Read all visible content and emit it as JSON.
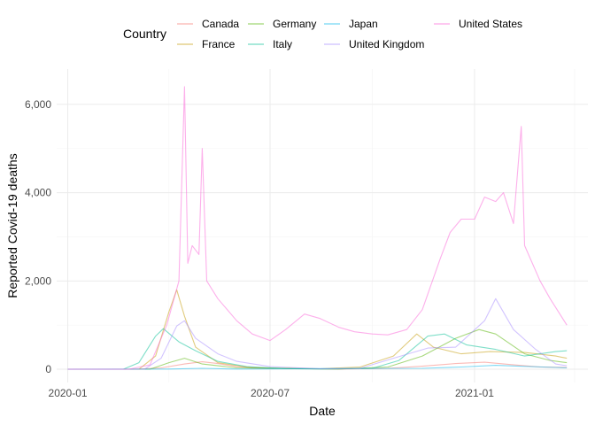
{
  "chart_data": {
    "type": "line",
    "xlabel": "Date",
    "ylabel": "Reported Covid-19 deaths",
    "x_type": "date",
    "xlim": [
      "2019-12-22",
      "2021-04-13"
    ],
    "ylim": [
      -300,
      6800
    ],
    "x_ticks": [
      {
        "value": "2020-01-01",
        "label": "2020-01"
      },
      {
        "value": "2020-07-01",
        "label": "2020-07"
      },
      {
        "value": "2021-01-01",
        "label": "2021-01"
      }
    ],
    "x_minor_ticks": [
      "2020-04-01",
      "2020-10-01",
      "2021-04-01"
    ],
    "y_ticks": [
      {
        "value": 0,
        "label": "0"
      },
      {
        "value": 2000,
        "label": "2,000"
      },
      {
        "value": 4000,
        "label": "4,000"
      },
      {
        "value": 6000,
        "label": "6,000"
      }
    ],
    "y_minor_ticks": [
      1000,
      3000,
      5000
    ],
    "grid": true,
    "legend": {
      "title": "Country",
      "placement": "top"
    },
    "series": [
      {
        "name": "Canada",
        "color": "#F8766D",
        "points": [
          [
            "2020-01-01",
            0
          ],
          [
            "2020-03-01",
            0
          ],
          [
            "2020-03-25",
            30
          ],
          [
            "2020-04-15",
            120
          ],
          [
            "2020-05-01",
            170
          ],
          [
            "2020-05-15",
            130
          ],
          [
            "2020-06-01",
            60
          ],
          [
            "2020-07-01",
            20
          ],
          [
            "2020-09-01",
            5
          ],
          [
            "2020-10-15",
            20
          ],
          [
            "2020-11-15",
            70
          ],
          [
            "2020-12-15",
            130
          ],
          [
            "2021-01-10",
            160
          ],
          [
            "2021-02-01",
            110
          ],
          [
            "2021-03-01",
            50
          ],
          [
            "2021-03-25",
            40
          ]
        ]
      },
      {
        "name": "France",
        "color": "#C49A00",
        "points": [
          [
            "2020-01-01",
            0
          ],
          [
            "2020-03-05",
            0
          ],
          [
            "2020-03-20",
            300
          ],
          [
            "2020-04-01",
            1300
          ],
          [
            "2020-04-08",
            1800
          ],
          [
            "2020-04-15",
            1200
          ],
          [
            "2020-04-25",
            500
          ],
          [
            "2020-05-15",
            150
          ],
          [
            "2020-06-15",
            30
          ],
          [
            "2020-08-15",
            10
          ],
          [
            "2020-09-20",
            50
          ],
          [
            "2020-10-20",
            300
          ],
          [
            "2020-11-10",
            800
          ],
          [
            "2020-11-25",
            500
          ],
          [
            "2020-12-20",
            350
          ],
          [
            "2021-01-15",
            400
          ],
          [
            "2021-02-15",
            380
          ],
          [
            "2021-03-15",
            300
          ],
          [
            "2021-03-25",
            250
          ]
        ]
      },
      {
        "name": "Germany",
        "color": "#53B400",
        "points": [
          [
            "2020-01-01",
            0
          ],
          [
            "2020-03-15",
            0
          ],
          [
            "2020-04-01",
            150
          ],
          [
            "2020-04-15",
            250
          ],
          [
            "2020-05-01",
            120
          ],
          [
            "2020-06-01",
            30
          ],
          [
            "2020-09-01",
            5
          ],
          [
            "2020-10-15",
            50
          ],
          [
            "2020-11-15",
            300
          ],
          [
            "2020-12-15",
            700
          ],
          [
            "2021-01-05",
            900
          ],
          [
            "2021-01-20",
            800
          ],
          [
            "2021-02-15",
            350
          ],
          [
            "2021-03-10",
            200
          ],
          [
            "2021-03-25",
            150
          ]
        ]
      },
      {
        "name": "Italy",
        "color": "#00C094",
        "points": [
          [
            "2020-01-01",
            0
          ],
          [
            "2020-02-20",
            0
          ],
          [
            "2020-03-05",
            150
          ],
          [
            "2020-03-20",
            750
          ],
          [
            "2020-03-27",
            920
          ],
          [
            "2020-04-10",
            620
          ],
          [
            "2020-04-25",
            420
          ],
          [
            "2020-05-15",
            180
          ],
          [
            "2020-06-10",
            60
          ],
          [
            "2020-07-15",
            15
          ],
          [
            "2020-08-15",
            5
          ],
          [
            "2020-10-01",
            20
          ],
          [
            "2020-10-25",
            200
          ],
          [
            "2020-11-20",
            750
          ],
          [
            "2020-12-05",
            800
          ],
          [
            "2020-12-25",
            550
          ],
          [
            "2021-01-20",
            450
          ],
          [
            "2021-02-15",
            300
          ],
          [
            "2021-03-15",
            400
          ],
          [
            "2021-03-25",
            420
          ]
        ]
      },
      {
        "name": "Japan",
        "color": "#00B6EB",
        "points": [
          [
            "2020-01-01",
            0
          ],
          [
            "2020-04-01",
            5
          ],
          [
            "2020-05-01",
            20
          ],
          [
            "2020-06-01",
            5
          ],
          [
            "2020-08-15",
            15
          ],
          [
            "2020-11-15",
            20
          ],
          [
            "2020-12-20",
            50
          ],
          [
            "2021-01-20",
            90
          ],
          [
            "2021-02-10",
            70
          ],
          [
            "2021-03-15",
            40
          ],
          [
            "2021-03-25",
            30
          ]
        ]
      },
      {
        "name": "United Kingdom",
        "color": "#A58AFF",
        "points": [
          [
            "2020-01-01",
            0
          ],
          [
            "2020-03-10",
            0
          ],
          [
            "2020-03-25",
            250
          ],
          [
            "2020-04-08",
            980
          ],
          [
            "2020-04-15",
            1100
          ],
          [
            "2020-04-25",
            700
          ],
          [
            "2020-05-15",
            350
          ],
          [
            "2020-06-01",
            180
          ],
          [
            "2020-07-01",
            60
          ],
          [
            "2020-08-15",
            10
          ],
          [
            "2020-09-20",
            20
          ],
          [
            "2020-10-20",
            250
          ],
          [
            "2020-11-20",
            480
          ],
          [
            "2020-12-15",
            500
          ],
          [
            "2021-01-10",
            1100
          ],
          [
            "2021-01-20",
            1600
          ],
          [
            "2021-02-05",
            900
          ],
          [
            "2021-02-25",
            450
          ],
          [
            "2021-03-15",
            120
          ],
          [
            "2021-03-25",
            80
          ]
        ]
      },
      {
        "name": "United States",
        "color": "#FB61D7",
        "points": [
          [
            "2020-01-01",
            0
          ],
          [
            "2020-02-25",
            0
          ],
          [
            "2020-03-15",
            100
          ],
          [
            "2020-03-30",
            1000
          ],
          [
            "2020-04-10",
            2000
          ],
          [
            "2020-04-15",
            6400
          ],
          [
            "2020-04-18",
            2400
          ],
          [
            "2020-04-22",
            2800
          ],
          [
            "2020-04-28",
            2600
          ],
          [
            "2020-05-01",
            5000
          ],
          [
            "2020-05-05",
            2000
          ],
          [
            "2020-05-15",
            1600
          ],
          [
            "2020-06-01",
            1100
          ],
          [
            "2020-06-15",
            800
          ],
          [
            "2020-07-01",
            650
          ],
          [
            "2020-07-15",
            900
          ],
          [
            "2020-08-01",
            1250
          ],
          [
            "2020-08-15",
            1150
          ],
          [
            "2020-09-01",
            950
          ],
          [
            "2020-09-15",
            850
          ],
          [
            "2020-10-01",
            800
          ],
          [
            "2020-10-15",
            780
          ],
          [
            "2020-11-01",
            900
          ],
          [
            "2020-11-15",
            1350
          ],
          [
            "2020-12-01",
            2500
          ],
          [
            "2020-12-10",
            3100
          ],
          [
            "2020-12-20",
            3400
          ],
          [
            "2021-01-01",
            3400
          ],
          [
            "2021-01-10",
            3900
          ],
          [
            "2021-01-20",
            3800
          ],
          [
            "2021-01-27",
            4000
          ],
          [
            "2021-02-05",
            3300
          ],
          [
            "2021-02-12",
            5500
          ],
          [
            "2021-02-15",
            2800
          ],
          [
            "2021-03-01",
            2000
          ],
          [
            "2021-03-10",
            1600
          ],
          [
            "2021-03-20",
            1200
          ],
          [
            "2021-03-25",
            1000
          ]
        ]
      }
    ]
  }
}
